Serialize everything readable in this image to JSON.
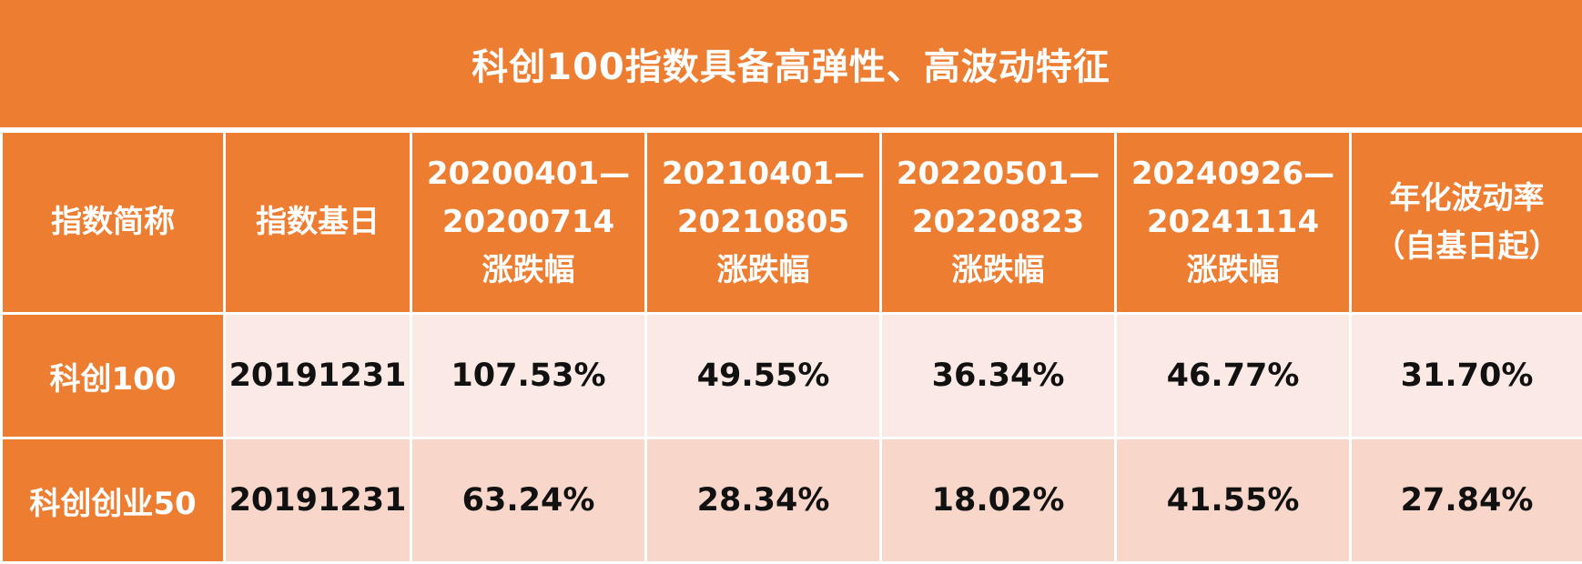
{
  "title": "科创100指数具备高弹性、高波动特征",
  "colors": {
    "header_bg": "#ed7d31",
    "row1_bg": "#fbe9e5",
    "row2_bg": "#f8d6ca",
    "text_dark": "#111111",
    "text_light": "#ffffff"
  },
  "columns": [
    {
      "lines": [
        "指数简称"
      ]
    },
    {
      "lines": [
        "指数基日"
      ]
    },
    {
      "lines": [
        "20200401—",
        "20200714",
        "涨跌幅"
      ]
    },
    {
      "lines": [
        "20210401—",
        "20210805",
        "涨跌幅"
      ]
    },
    {
      "lines": [
        "20220501—",
        "20220823",
        "涨跌幅"
      ]
    },
    {
      "lines": [
        "20240926—",
        "20241114",
        "涨跌幅"
      ]
    },
    {
      "lines": [
        "年化波动率",
        "（自基日起）"
      ]
    }
  ],
  "rows": [
    {
      "name": "科创100",
      "cells": [
        "20191231",
        "107.53%",
        "49.55%",
        "36.34%",
        "46.77%",
        "31.70%"
      ]
    },
    {
      "name": "科创创业50",
      "cells": [
        "20191231",
        "63.24%",
        "28.34%",
        "18.02%",
        "41.55%",
        "27.84%"
      ]
    }
  ]
}
